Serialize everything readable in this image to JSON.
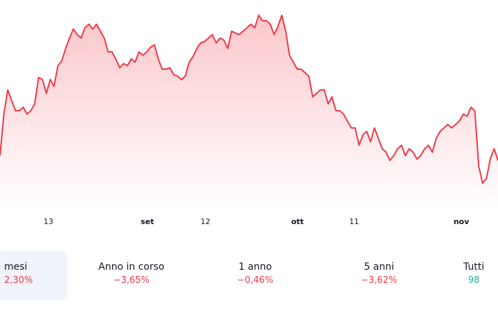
{
  "colors": {
    "line": "#f23645",
    "negative": "#f23645",
    "positive": "#22ab94",
    "active_tab_bg": "#f0f3fa"
  },
  "chart_data": {
    "type": "area",
    "x_tick_labels": [
      "13",
      "set",
      "12",
      "ott",
      "11",
      "nov"
    ],
    "values": [
      75,
      135,
      170,
      155,
      140,
      140,
      145,
      135,
      140,
      150,
      188,
      185,
      165,
      185,
      175,
      205,
      212,
      230,
      245,
      258,
      250,
      245,
      260,
      265,
      258,
      265,
      255,
      245,
      225,
      225,
      215,
      202,
      208,
      205,
      215,
      210,
      225,
      220,
      225,
      232,
      235,
      215,
      200,
      200,
      202,
      192,
      190,
      185,
      190,
      210,
      218,
      230,
      238,
      240,
      245,
      250,
      238,
      245,
      242,
      230,
      255,
      252,
      250,
      255,
      260,
      265,
      260,
      278,
      270,
      270,
      265,
      250,
      262,
      278,
      255,
      220,
      210,
      200,
      200,
      195,
      190,
      160,
      165,
      170,
      170,
      150,
      160,
      140,
      140,
      135,
      125,
      115,
      115,
      90,
      105,
      110,
      95,
      115,
      100,
      85,
      80,
      68,
      75,
      85,
      90,
      75,
      85,
      80,
      70,
      75,
      85,
      90,
      80,
      100,
      110,
      115,
      120,
      115,
      120,
      125,
      135,
      132,
      145,
      140,
      60,
      35,
      42,
      70,
      85,
      68
    ],
    "ylim": [
      0,
      285
    ],
    "grid": false
  },
  "periods": [
    {
      "label": "mesi",
      "value": "2,30%",
      "trend": "negative",
      "active": true
    },
    {
      "label": "Anno in corso",
      "value": "−3,65%",
      "trend": "negative",
      "active": false
    },
    {
      "label": "1 anno",
      "value": "−0,46%",
      "trend": "negative",
      "active": false
    },
    {
      "label": "5 anni",
      "value": "−3,62%",
      "trend": "negative",
      "active": false
    },
    {
      "label": "Tutti",
      "value": "98",
      "trend": "positive",
      "active": false
    }
  ]
}
